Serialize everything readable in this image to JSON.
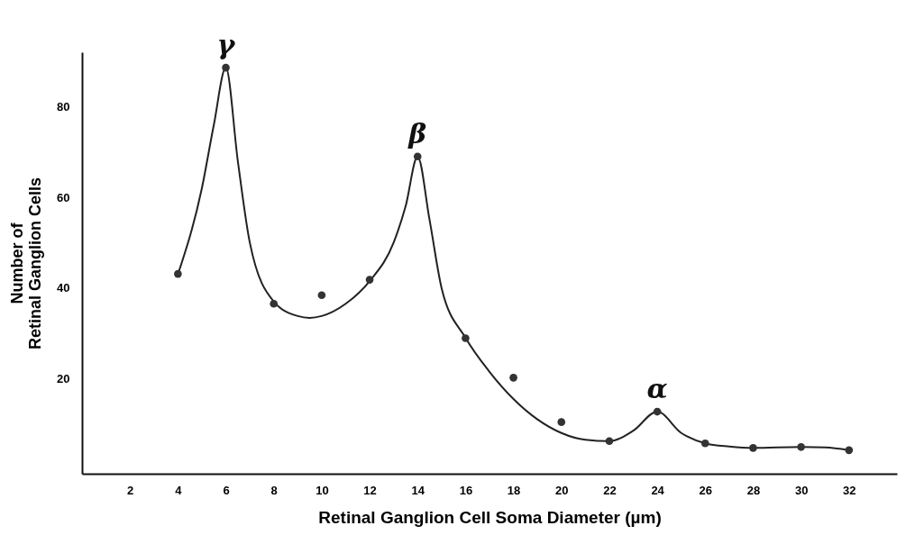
{
  "chart_data": {
    "type": "scatter",
    "xlabel": "Retinal Ganglion Cell Soma Diameter  (µm)",
    "ylabel": "Number of\nRetinal Ganglion Cells",
    "xlim": [
      0,
      34
    ],
    "ylim": [
      -1,
      92
    ],
    "xticks": [
      2,
      4,
      6,
      8,
      10,
      12,
      14,
      16,
      18,
      20,
      22,
      24,
      26,
      28,
      30,
      32
    ],
    "yticks": [
      20,
      40,
      60,
      80
    ],
    "grid": false,
    "series": [
      {
        "type": "line",
        "line_style": "solid",
        "color": "#222222",
        "x": [
          4,
          5,
          5.5,
          6,
          6.5,
          7,
          8,
          9,
          9.5,
          10,
          11,
          12,
          13,
          13.5,
          14,
          14.5,
          15,
          16,
          17,
          18,
          19,
          20,
          21,
          22,
          23,
          24,
          25,
          26,
          27,
          28,
          30,
          31,
          32
        ],
        "values": [
          43,
          62,
          76,
          88.6,
          68,
          50,
          37,
          33.8,
          33.4,
          33.8,
          36.5,
          41.5,
          50,
          58,
          69,
          55,
          40,
          29,
          21.5,
          15.5,
          11,
          8,
          6.5,
          6.2,
          8.5,
          12.7,
          8,
          5.7,
          5,
          4.7,
          4.9,
          4.8,
          4.2
        ]
      },
      {
        "marker": "circle",
        "color": "#333333",
        "x": [
          4,
          6,
          8,
          10,
          12,
          14,
          16,
          18,
          20,
          22,
          24,
          26,
          28,
          30,
          32
        ],
        "values": [
          43.1,
          88.6,
          36.5,
          38.4,
          41.8,
          69,
          28.9,
          20.2,
          10.4,
          6.2,
          12.7,
          5.7,
          4.7,
          4.9,
          4.2
        ]
      }
    ],
    "annotations": [
      {
        "text": "γ",
        "x": 6,
        "y": 88.6
      },
      {
        "text": "β",
        "x": 14,
        "y": 69
      },
      {
        "text": "α",
        "x": 24,
        "y": 12.7
      }
    ]
  }
}
